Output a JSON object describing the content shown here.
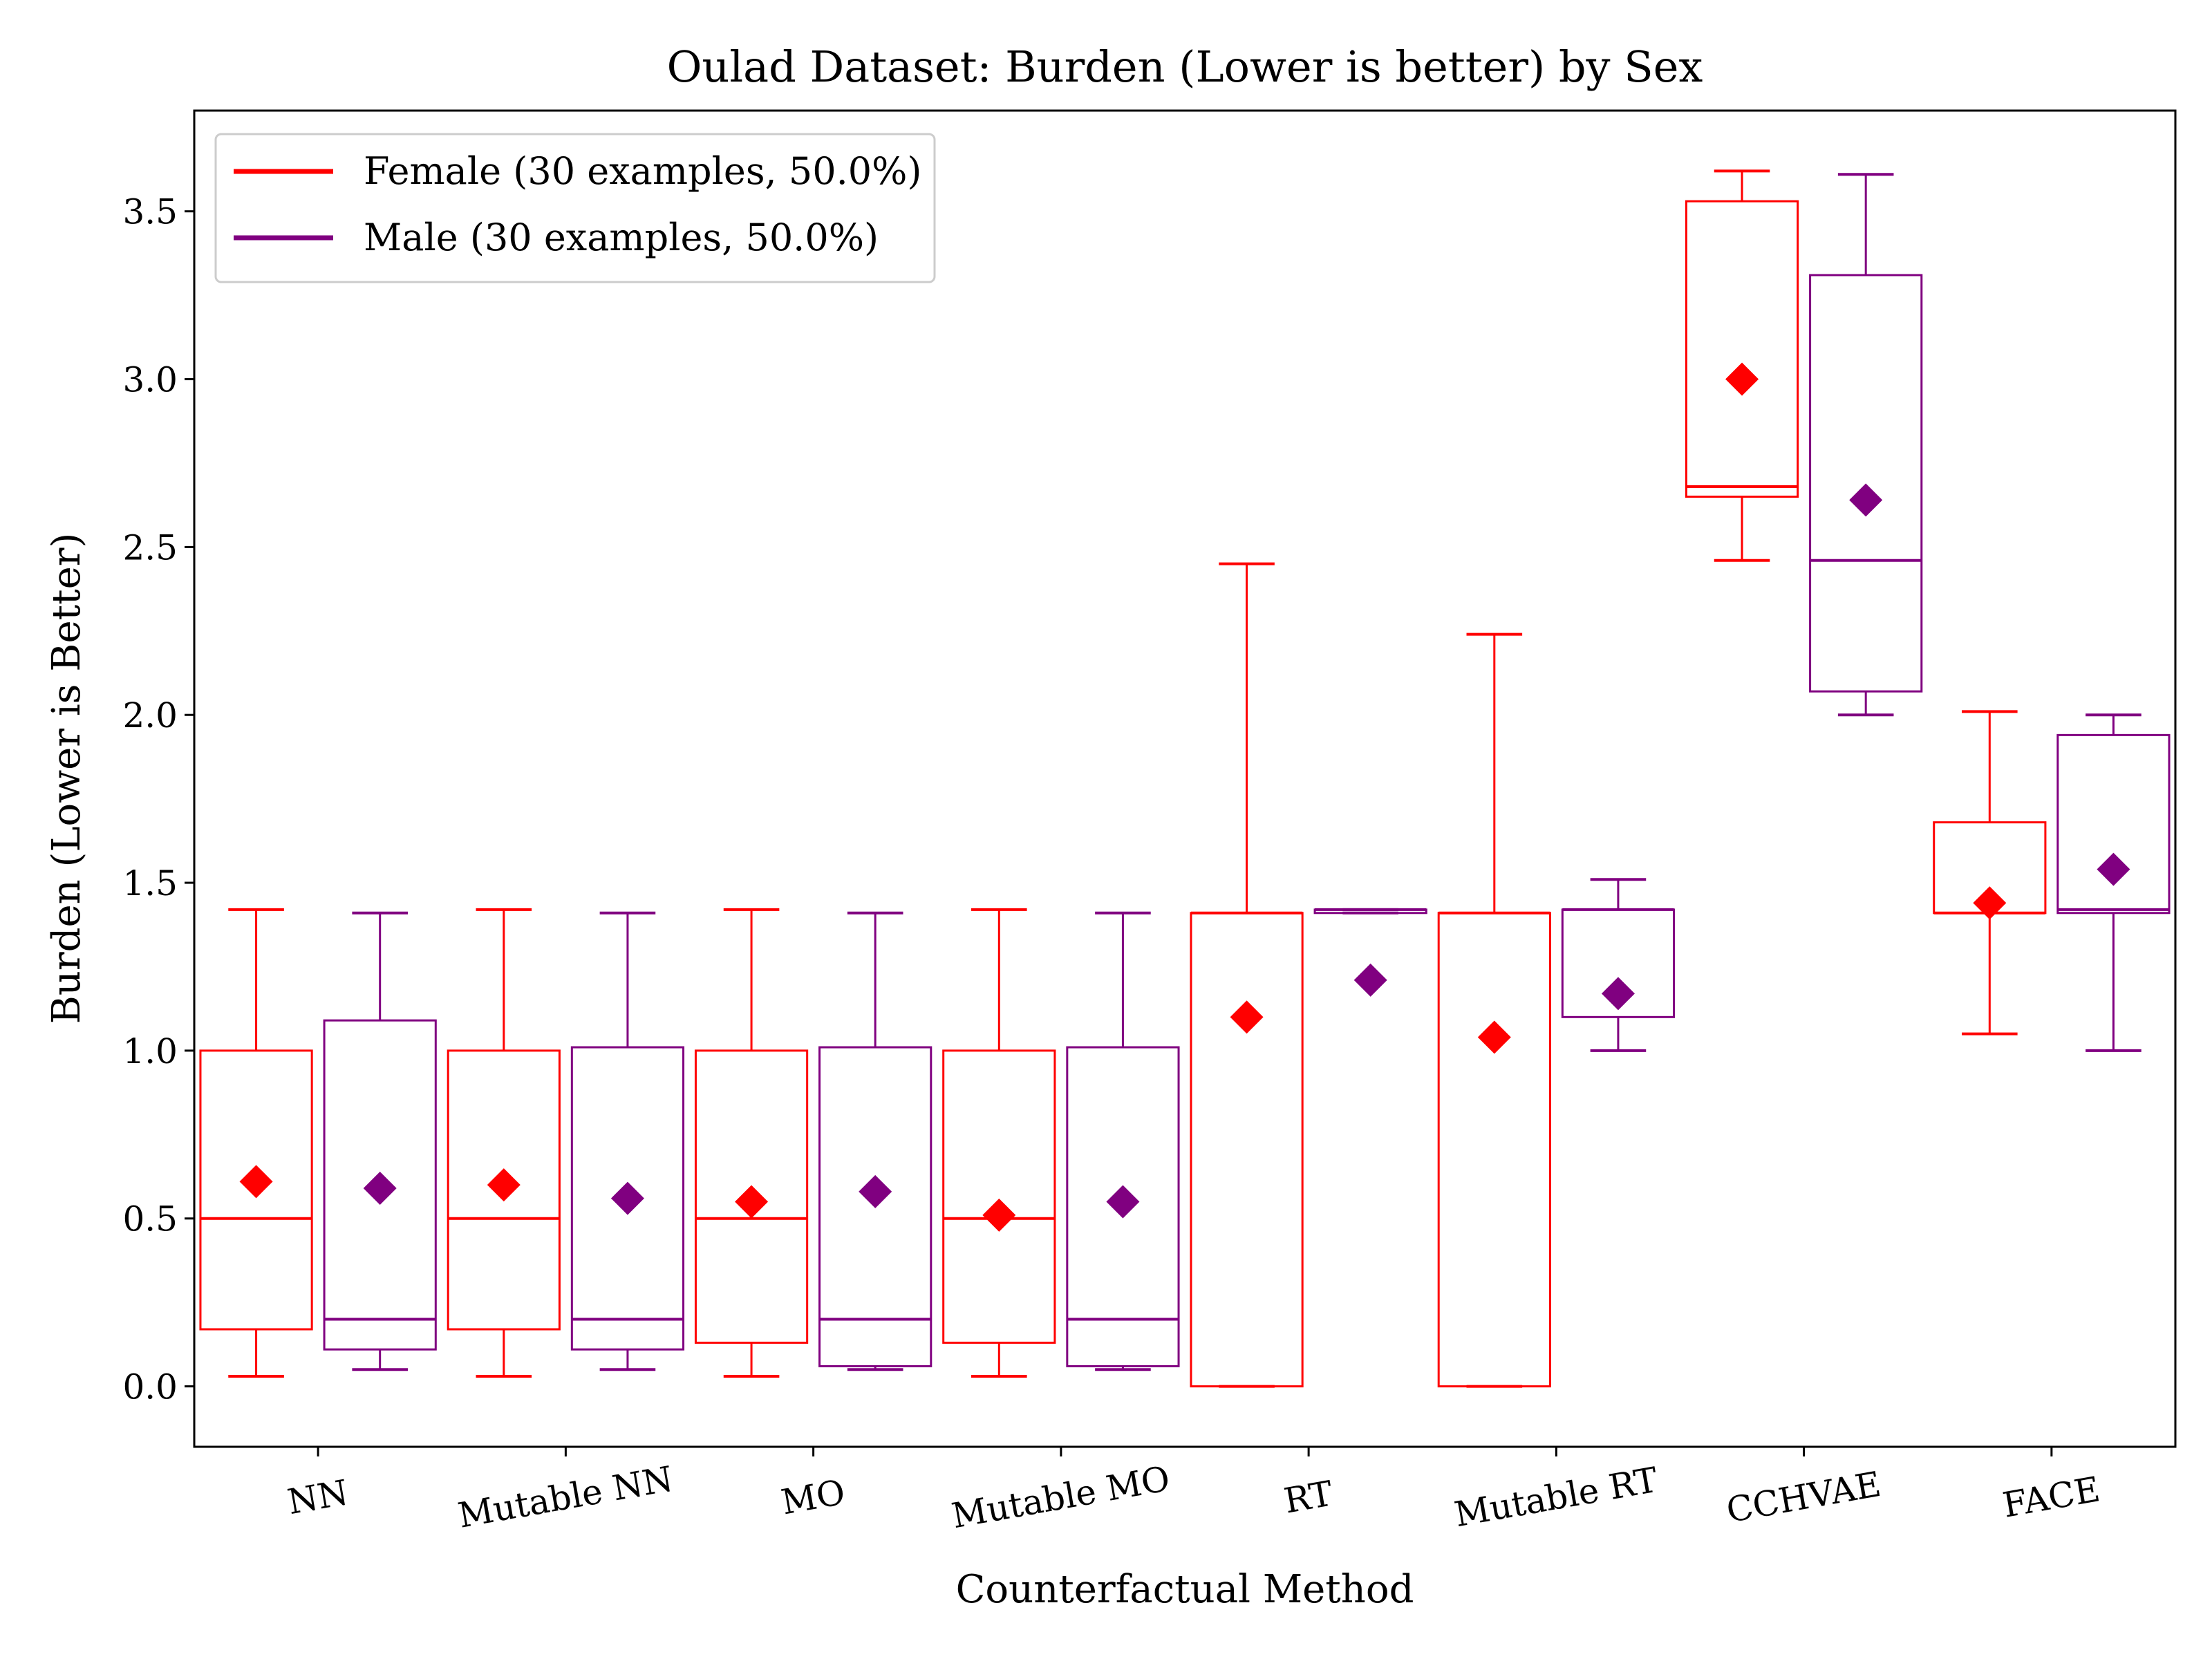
{
  "chart_data": {
    "type": "box",
    "title": "Oulad Dataset: Burden (Lower is better) by Sex",
    "xlabel": "Counterfactual Method",
    "ylabel": "Burden (Lower is Better)",
    "ylim": [
      -0.18,
      3.8
    ],
    "yticks": [
      "0.0",
      "0.5",
      "1.0",
      "1.5",
      "2.0",
      "2.5",
      "3.0",
      "3.5"
    ],
    "ytick_values": [
      0,
      0.5,
      1.0,
      1.5,
      2.0,
      2.5,
      3.0,
      3.5
    ],
    "categories": [
      "NN",
      "Mutable NN",
      "MO",
      "Mutable MO",
      "RT",
      "Mutable RT",
      "CCHVAE",
      "FACE"
    ],
    "grid": false,
    "legend_position": "top-left",
    "series": [
      {
        "name": "Female (30 examples, 50.0%)",
        "color": "#ff0000",
        "boxes": [
          {
            "whislo": 0.03,
            "q1": 0.17,
            "med": 0.5,
            "q3": 1.0,
            "whishi": 1.42,
            "mean": 0.61
          },
          {
            "whislo": 0.03,
            "q1": 0.17,
            "med": 0.5,
            "q3": 1.0,
            "whishi": 1.42,
            "mean": 0.6
          },
          {
            "whislo": 0.03,
            "q1": 0.13,
            "med": 0.5,
            "q3": 1.0,
            "whishi": 1.42,
            "mean": 0.55
          },
          {
            "whislo": 0.03,
            "q1": 0.13,
            "med": 0.5,
            "q3": 1.0,
            "whishi": 1.42,
            "mean": 0.51
          },
          {
            "whislo": 0.0,
            "q1": 0.0,
            "med": 1.41,
            "q3": 1.41,
            "whishi": 2.45,
            "mean": 1.1
          },
          {
            "whislo": 0.0,
            "q1": 0.0,
            "med": 1.41,
            "q3": 1.41,
            "whishi": 2.24,
            "mean": 1.04
          },
          {
            "whislo": 2.46,
            "q1": 2.65,
            "med": 2.68,
            "q3": 3.53,
            "whishi": 3.62,
            "mean": 3.0
          },
          {
            "whislo": 1.05,
            "q1": 1.41,
            "med": 1.41,
            "q3": 1.68,
            "whishi": 2.01,
            "mean": 1.44
          }
        ]
      },
      {
        "name": "Male (30 examples, 50.0%)",
        "color": "#800080",
        "boxes": [
          {
            "whislo": 0.05,
            "q1": 0.11,
            "med": 0.2,
            "q3": 1.09,
            "whishi": 1.41,
            "mean": 0.59
          },
          {
            "whislo": 0.05,
            "q1": 0.11,
            "med": 0.2,
            "q3": 1.01,
            "whishi": 1.41,
            "mean": 0.56
          },
          {
            "whislo": 0.05,
            "q1": 0.06,
            "med": 0.2,
            "q3": 1.01,
            "whishi": 1.41,
            "mean": 0.58
          },
          {
            "whislo": 0.05,
            "q1": 0.06,
            "med": 0.2,
            "q3": 1.01,
            "whishi": 1.41,
            "mean": 0.55
          },
          {
            "whislo": 1.41,
            "q1": 1.41,
            "med": 1.42,
            "q3": 1.42,
            "whishi": 1.42,
            "mean": 1.21
          },
          {
            "whislo": 1.0,
            "q1": 1.1,
            "med": 1.42,
            "q3": 1.42,
            "whishi": 1.51,
            "mean": 1.17
          },
          {
            "whislo": 2.0,
            "q1": 2.07,
            "med": 2.46,
            "q3": 3.31,
            "whishi": 3.61,
            "mean": 2.64
          },
          {
            "whislo": 1.0,
            "q1": 1.41,
            "med": 1.42,
            "q3": 1.94,
            "whishi": 2.0,
            "mean": 1.54
          }
        ]
      }
    ]
  }
}
